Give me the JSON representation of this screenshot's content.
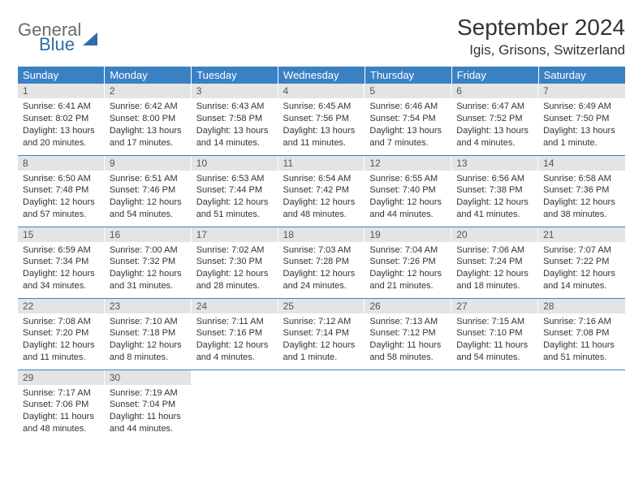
{
  "logo": {
    "part1": "General",
    "part2": "Blue"
  },
  "header": {
    "month_title": "September 2024",
    "location": "Igis, Grisons, Switzerland"
  },
  "calendar": {
    "header_bg": "#3a81c4",
    "header_text_color": "#ffffff",
    "daynum_bg": "#e4e4e4",
    "cell_border_color": "#3a81c4",
    "weekdays": [
      "Sunday",
      "Monday",
      "Tuesday",
      "Wednesday",
      "Thursday",
      "Friday",
      "Saturday"
    ],
    "weeks": [
      [
        {
          "n": "1",
          "sr": "Sunrise: 6:41 AM",
          "ss": "Sunset: 8:02 PM",
          "dl1": "Daylight: 13 hours",
          "dl2": "and 20 minutes."
        },
        {
          "n": "2",
          "sr": "Sunrise: 6:42 AM",
          "ss": "Sunset: 8:00 PM",
          "dl1": "Daylight: 13 hours",
          "dl2": "and 17 minutes."
        },
        {
          "n": "3",
          "sr": "Sunrise: 6:43 AM",
          "ss": "Sunset: 7:58 PM",
          "dl1": "Daylight: 13 hours",
          "dl2": "and 14 minutes."
        },
        {
          "n": "4",
          "sr": "Sunrise: 6:45 AM",
          "ss": "Sunset: 7:56 PM",
          "dl1": "Daylight: 13 hours",
          "dl2": "and 11 minutes."
        },
        {
          "n": "5",
          "sr": "Sunrise: 6:46 AM",
          "ss": "Sunset: 7:54 PM",
          "dl1": "Daylight: 13 hours",
          "dl2": "and 7 minutes."
        },
        {
          "n": "6",
          "sr": "Sunrise: 6:47 AM",
          "ss": "Sunset: 7:52 PM",
          "dl1": "Daylight: 13 hours",
          "dl2": "and 4 minutes."
        },
        {
          "n": "7",
          "sr": "Sunrise: 6:49 AM",
          "ss": "Sunset: 7:50 PM",
          "dl1": "Daylight: 13 hours",
          "dl2": "and 1 minute."
        }
      ],
      [
        {
          "n": "8",
          "sr": "Sunrise: 6:50 AM",
          "ss": "Sunset: 7:48 PM",
          "dl1": "Daylight: 12 hours",
          "dl2": "and 57 minutes."
        },
        {
          "n": "9",
          "sr": "Sunrise: 6:51 AM",
          "ss": "Sunset: 7:46 PM",
          "dl1": "Daylight: 12 hours",
          "dl2": "and 54 minutes."
        },
        {
          "n": "10",
          "sr": "Sunrise: 6:53 AM",
          "ss": "Sunset: 7:44 PM",
          "dl1": "Daylight: 12 hours",
          "dl2": "and 51 minutes."
        },
        {
          "n": "11",
          "sr": "Sunrise: 6:54 AM",
          "ss": "Sunset: 7:42 PM",
          "dl1": "Daylight: 12 hours",
          "dl2": "and 48 minutes."
        },
        {
          "n": "12",
          "sr": "Sunrise: 6:55 AM",
          "ss": "Sunset: 7:40 PM",
          "dl1": "Daylight: 12 hours",
          "dl2": "and 44 minutes."
        },
        {
          "n": "13",
          "sr": "Sunrise: 6:56 AM",
          "ss": "Sunset: 7:38 PM",
          "dl1": "Daylight: 12 hours",
          "dl2": "and 41 minutes."
        },
        {
          "n": "14",
          "sr": "Sunrise: 6:58 AM",
          "ss": "Sunset: 7:36 PM",
          "dl1": "Daylight: 12 hours",
          "dl2": "and 38 minutes."
        }
      ],
      [
        {
          "n": "15",
          "sr": "Sunrise: 6:59 AM",
          "ss": "Sunset: 7:34 PM",
          "dl1": "Daylight: 12 hours",
          "dl2": "and 34 minutes."
        },
        {
          "n": "16",
          "sr": "Sunrise: 7:00 AM",
          "ss": "Sunset: 7:32 PM",
          "dl1": "Daylight: 12 hours",
          "dl2": "and 31 minutes."
        },
        {
          "n": "17",
          "sr": "Sunrise: 7:02 AM",
          "ss": "Sunset: 7:30 PM",
          "dl1": "Daylight: 12 hours",
          "dl2": "and 28 minutes."
        },
        {
          "n": "18",
          "sr": "Sunrise: 7:03 AM",
          "ss": "Sunset: 7:28 PM",
          "dl1": "Daylight: 12 hours",
          "dl2": "and 24 minutes."
        },
        {
          "n": "19",
          "sr": "Sunrise: 7:04 AM",
          "ss": "Sunset: 7:26 PM",
          "dl1": "Daylight: 12 hours",
          "dl2": "and 21 minutes."
        },
        {
          "n": "20",
          "sr": "Sunrise: 7:06 AM",
          "ss": "Sunset: 7:24 PM",
          "dl1": "Daylight: 12 hours",
          "dl2": "and 18 minutes."
        },
        {
          "n": "21",
          "sr": "Sunrise: 7:07 AM",
          "ss": "Sunset: 7:22 PM",
          "dl1": "Daylight: 12 hours",
          "dl2": "and 14 minutes."
        }
      ],
      [
        {
          "n": "22",
          "sr": "Sunrise: 7:08 AM",
          "ss": "Sunset: 7:20 PM",
          "dl1": "Daylight: 12 hours",
          "dl2": "and 11 minutes."
        },
        {
          "n": "23",
          "sr": "Sunrise: 7:10 AM",
          "ss": "Sunset: 7:18 PM",
          "dl1": "Daylight: 12 hours",
          "dl2": "and 8 minutes."
        },
        {
          "n": "24",
          "sr": "Sunrise: 7:11 AM",
          "ss": "Sunset: 7:16 PM",
          "dl1": "Daylight: 12 hours",
          "dl2": "and 4 minutes."
        },
        {
          "n": "25",
          "sr": "Sunrise: 7:12 AM",
          "ss": "Sunset: 7:14 PM",
          "dl1": "Daylight: 12 hours",
          "dl2": "and 1 minute."
        },
        {
          "n": "26",
          "sr": "Sunrise: 7:13 AM",
          "ss": "Sunset: 7:12 PM",
          "dl1": "Daylight: 11 hours",
          "dl2": "and 58 minutes."
        },
        {
          "n": "27",
          "sr": "Sunrise: 7:15 AM",
          "ss": "Sunset: 7:10 PM",
          "dl1": "Daylight: 11 hours",
          "dl2": "and 54 minutes."
        },
        {
          "n": "28",
          "sr": "Sunrise: 7:16 AM",
          "ss": "Sunset: 7:08 PM",
          "dl1": "Daylight: 11 hours",
          "dl2": "and 51 minutes."
        }
      ],
      [
        {
          "n": "29",
          "sr": "Sunrise: 7:17 AM",
          "ss": "Sunset: 7:06 PM",
          "dl1": "Daylight: 11 hours",
          "dl2": "and 48 minutes."
        },
        {
          "n": "30",
          "sr": "Sunrise: 7:19 AM",
          "ss": "Sunset: 7:04 PM",
          "dl1": "Daylight: 11 hours",
          "dl2": "and 44 minutes."
        },
        null,
        null,
        null,
        null,
        null
      ]
    ]
  }
}
